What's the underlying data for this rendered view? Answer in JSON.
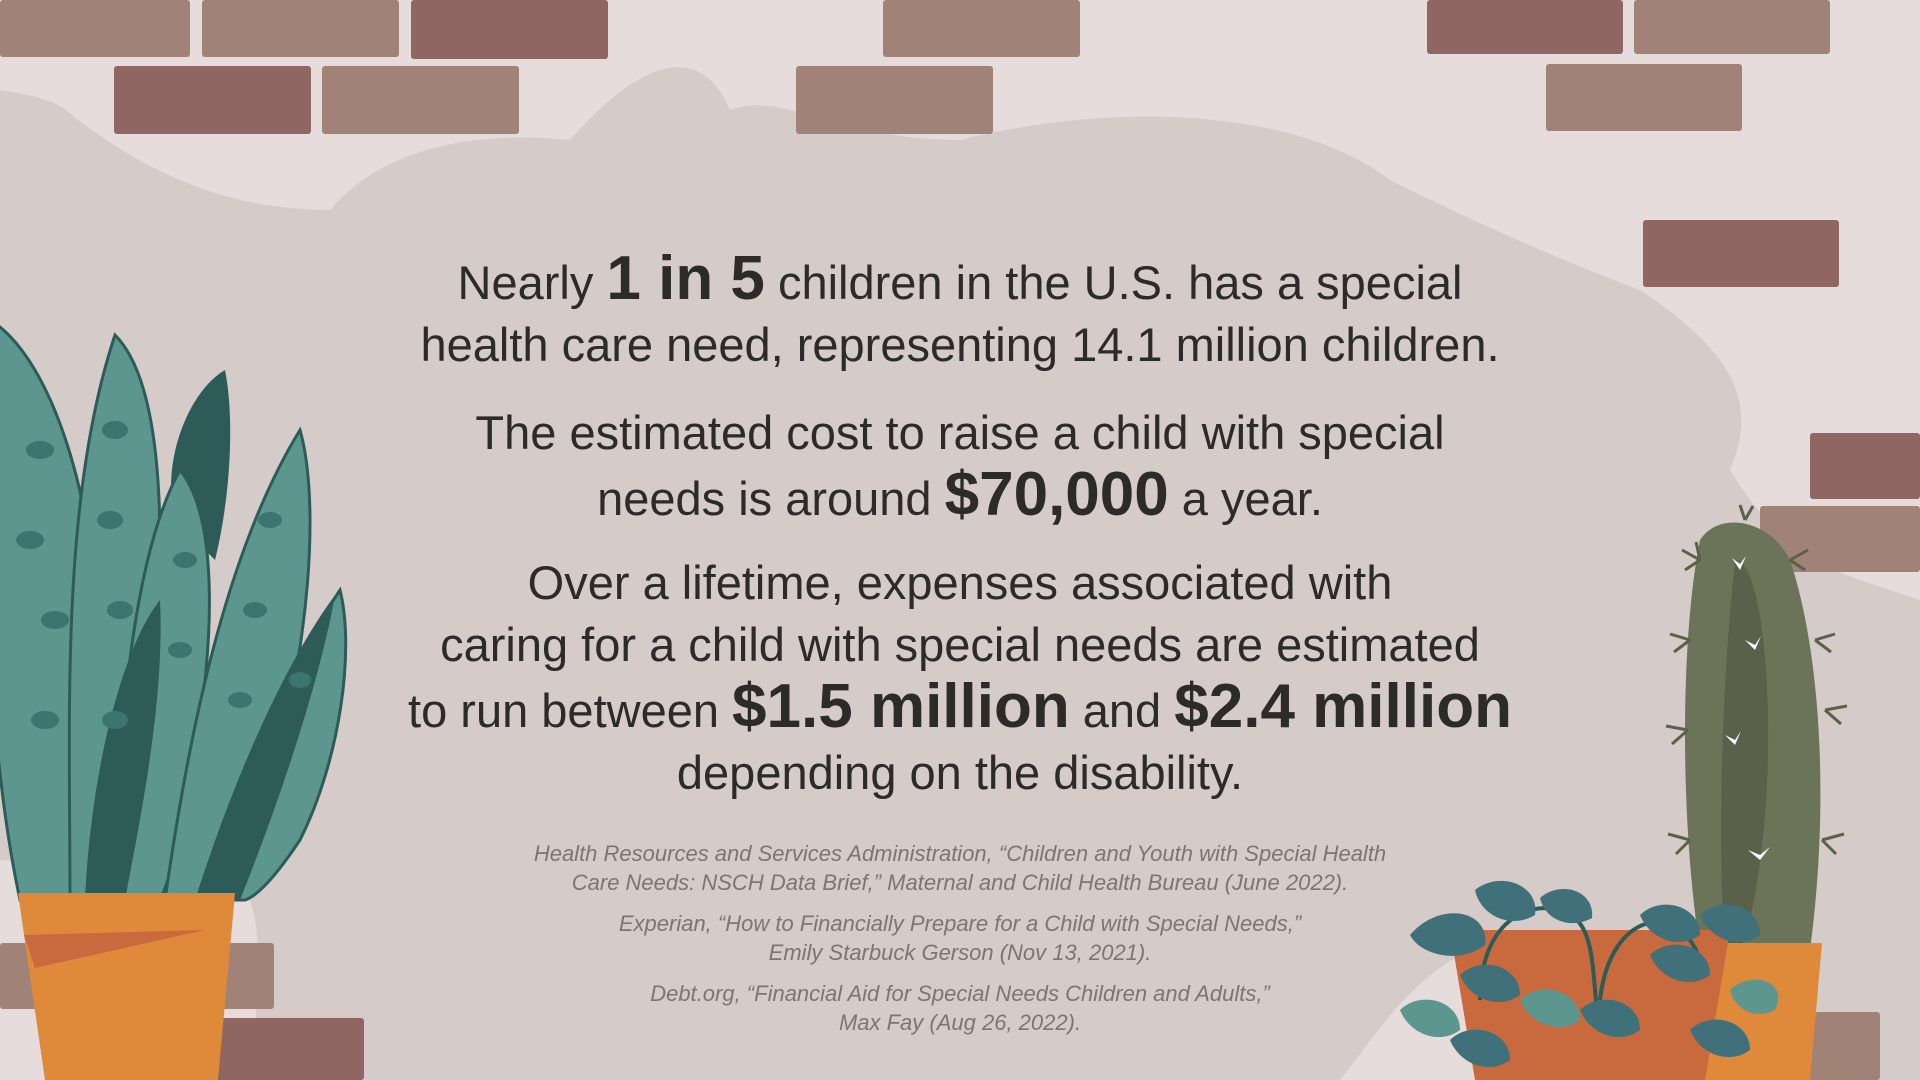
{
  "stat1": {
    "pre": "Nearly ",
    "highlight": "1 in 5",
    "post": " children in the U.S. has a special",
    "line2": "health care need, representing 14.1 million children."
  },
  "stat2": {
    "line1": "The estimated cost to raise a child with special",
    "pre": "needs is around ",
    "highlight": "$70,000",
    "post": " a year."
  },
  "stat3": {
    "line1": "Over a lifetime, expenses associated with",
    "line2": "caring for a child with special needs are estimated",
    "pre": "to run between ",
    "highlight1": "$1.5 million",
    "mid": " and ",
    "highlight2": "$2.4 million",
    "line4": "depending on the disability."
  },
  "citations": [
    {
      "line1": "Health Resources and Services Administration, “Children and Youth with Special Health",
      "line2": "Care Needs: NSCH Data Brief,” Maternal and Child Health Bureau (June 2022)."
    },
    {
      "line1": "Experian, “How to Financially Prepare for a Child with Special Needs,”",
      "line2": "Emily Starbuck Gerson (Nov 13, 2021)."
    },
    {
      "line1": "Debt.org, “Financial Aid for Special Needs Children and Adults,”",
      "line2": "Max Fay (Aug 26, 2022)."
    }
  ],
  "colors": {
    "background": "#e6dcdb",
    "blob": "#d5cbc8",
    "brick_dark": "#8f6661",
    "brick_light": "#a08276",
    "text": "#2d2a2a",
    "citation": "#7d7473",
    "pot_orange": "#de8a3a",
    "leaf_teal": "#5c968f",
    "leaf_dark": "#2d5c58",
    "cactus": "#6b7358"
  },
  "illustrations": [
    "brick-wall",
    "snake-plant-in-pot",
    "cactus-in-pot",
    "trailing-ivy-in-pot"
  ]
}
